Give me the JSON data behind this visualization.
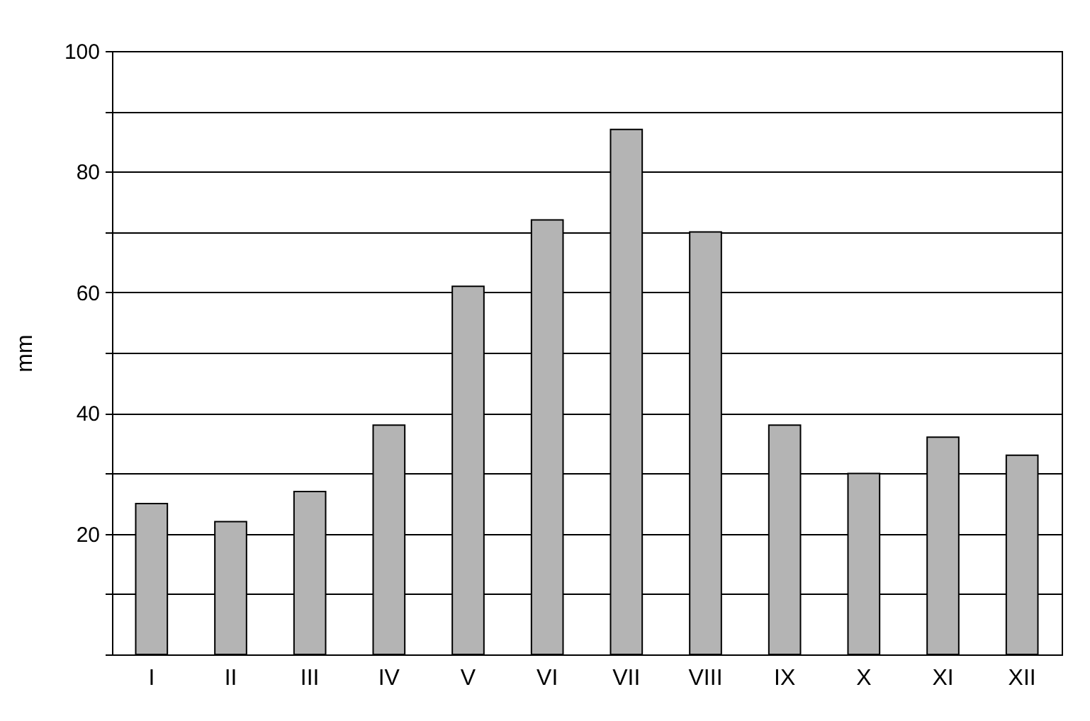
{
  "chart_data": {
    "type": "bar",
    "ylabel": "mm",
    "categories": [
      "I",
      "II",
      "III",
      "IV",
      "V",
      "VI",
      "VII",
      "VIII",
      "IX",
      "X",
      "XI",
      "XII"
    ],
    "values": [
      25,
      22,
      27,
      38,
      61,
      72,
      87,
      70,
      38,
      30,
      36,
      33
    ],
    "color": "#b4b4b4",
    "ylim": [
      0,
      100
    ],
    "yticks": [
      {
        "value": 0,
        "label": null
      },
      {
        "value": 10,
        "label": null
      },
      20,
      {
        "value": 30,
        "label": null
      },
      40,
      {
        "value": 50,
        "label": null
      },
      60,
      {
        "value": 70,
        "label": null
      },
      80,
      {
        "value": 90,
        "label": null
      },
      100
    ],
    "grid": "y"
  }
}
